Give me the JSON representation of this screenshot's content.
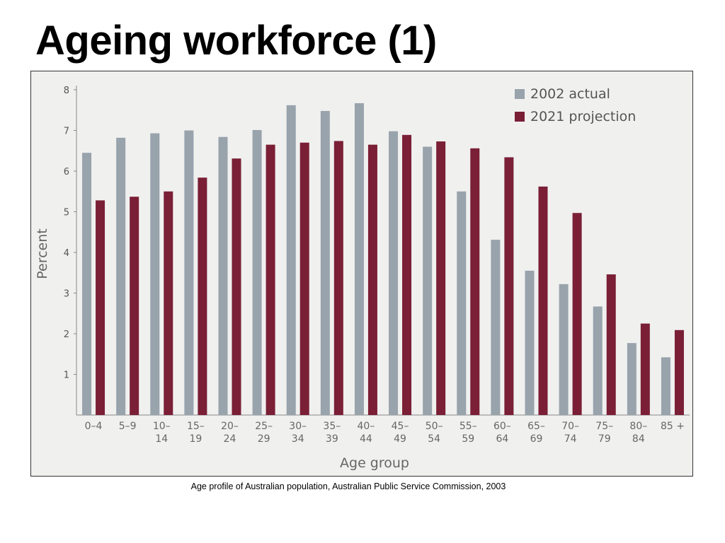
{
  "slide": {
    "title": "Ageing workforce (1)",
    "caption": "Age profile of Australian population, Australian Public Service Commission, 2003"
  },
  "colors": {
    "series_2002": "#98a3ac",
    "series_2021": "#7a1f36",
    "plot_background": "#f0f0ef",
    "axis": "#888888"
  },
  "chart_data": {
    "type": "bar",
    "xlabel": "Age group",
    "ylabel": "Percent",
    "ylim": [
      0,
      8
    ],
    "yticks": [
      1,
      2,
      3,
      4,
      5,
      6,
      7,
      8
    ],
    "grid": false,
    "legend_position": "top-right",
    "categories": [
      [
        "0–4"
      ],
      [
        "5–9"
      ],
      [
        "10–",
        "14"
      ],
      [
        "15–",
        "19"
      ],
      [
        "20–",
        "24"
      ],
      [
        "25–",
        "29"
      ],
      [
        "30–",
        "34"
      ],
      [
        "35–",
        "39"
      ],
      [
        "40–",
        "44"
      ],
      [
        "45–",
        "49"
      ],
      [
        "50–",
        "54"
      ],
      [
        "55–",
        "59"
      ],
      [
        "60–",
        "64"
      ],
      [
        "65–",
        "69"
      ],
      [
        "70–",
        "74"
      ],
      [
        "75–",
        "79"
      ],
      [
        "80–",
        "84"
      ],
      [
        "85 +"
      ]
    ],
    "series": [
      {
        "name": "2002 actual",
        "color": "#98a3ac",
        "values": [
          6.45,
          6.82,
          6.93,
          7.0,
          6.84,
          7.01,
          7.62,
          7.48,
          7.67,
          6.98,
          6.6,
          5.5,
          4.31,
          3.55,
          3.22,
          2.67,
          1.77,
          1.42
        ]
      },
      {
        "name": "2021 projection",
        "color": "#7a1f36",
        "values": [
          5.28,
          5.37,
          5.5,
          5.84,
          6.31,
          6.65,
          6.7,
          6.74,
          6.65,
          6.89,
          6.73,
          6.56,
          6.34,
          5.62,
          4.97,
          3.46,
          2.25,
          2.09
        ]
      }
    ]
  }
}
